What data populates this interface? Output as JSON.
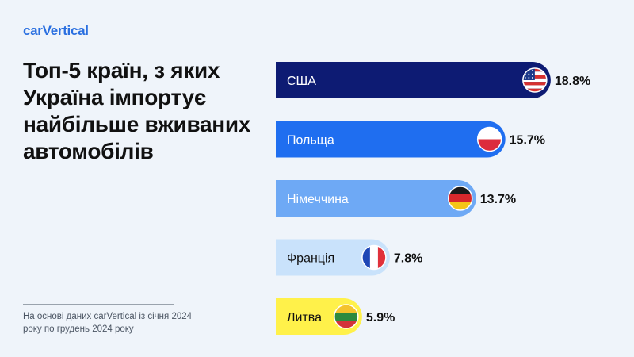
{
  "brand": {
    "logo_text": "carVertical",
    "accent": "#2a6fe0"
  },
  "title": "Топ-5 країн, з яких Україна імпортує найбільше вживаних автомобілів",
  "footnote": "На основі даних carVertical із січня 2024 року по грудень 2024 року",
  "colors": {
    "background": "#eff4fa",
    "bars": [
      "#0d1b73",
      "#1f6ef0",
      "#6ea9f5",
      "#c9e2fb",
      "#fff14a"
    ],
    "label_text": [
      "#ffffff",
      "#ffffff",
      "#ffffff",
      "#111111",
      "#111111"
    ]
  },
  "chart_data": {
    "type": "bar",
    "orientation": "horizontal",
    "categories": [
      "США",
      "Польща",
      "Німеччина",
      "Франція",
      "Литва"
    ],
    "values": [
      18.8,
      15.7,
      13.7,
      7.8,
      5.9
    ],
    "value_labels": [
      "18.8%",
      "15.7%",
      "13.7%",
      "7.8%",
      "5.9%"
    ],
    "flag_icons": [
      "usa-flag-icon",
      "poland-flag-icon",
      "germany-flag-icon",
      "france-flag-icon",
      "lithuania-flag-icon"
    ],
    "unit": "%",
    "grid": false,
    "legend": "none"
  }
}
